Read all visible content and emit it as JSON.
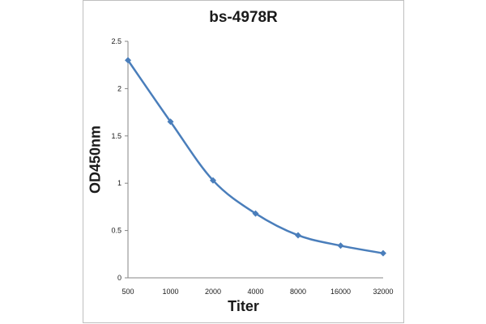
{
  "chart_data": {
    "type": "line",
    "title": "bs-4978R",
    "xlabel": "Titer",
    "ylabel": "OD450nm",
    "categories": [
      "500",
      "1000",
      "2000",
      "4000",
      "8000",
      "16000",
      "32000"
    ],
    "series": [
      {
        "values": [
          2.3,
          1.65,
          1.03,
          0.68,
          0.45,
          0.34,
          0.26
        ],
        "color": "#4a7ebb",
        "marker": "diamond",
        "smooth": true
      }
    ],
    "ylim": [
      0,
      2.5
    ],
    "yticks": [
      "0",
      "0.5",
      "1",
      "1.5",
      "2",
      "2.5"
    ],
    "grid": false,
    "legend": "none"
  }
}
